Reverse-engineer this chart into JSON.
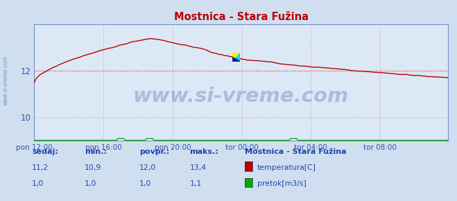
{
  "title": "Mostnica - Stara Fužina",
  "bg_color": "#d0dff0",
  "plot_bg_color": "#dce8f5",
  "grid_color": "#c0a0b0",
  "xlabel_color": "#3050b0",
  "ylim": [
    9.0,
    14.0
  ],
  "xlim": [
    0,
    287
  ],
  "yticks": [
    10,
    12
  ],
  "xtick_labels": [
    "pon 12:00",
    "pon 16:00",
    "pon 20:00",
    "tor 00:00",
    "tor 04:00",
    "tor 08:00"
  ],
  "xtick_positions": [
    0,
    48,
    96,
    144,
    192,
    240
  ],
  "temp_color": "#bb0000",
  "flow_color": "#00aa00",
  "avg_line_color": "#dd6060",
  "avg_value": 12.0,
  "watermark": "www.si-vreme.com",
  "watermark_color": "#1a3a9a",
  "watermark_alpha": 0.25,
  "footer_color": "#2244aa",
  "footer_label1": "sedaj:",
  "footer_label2": "min.:",
  "footer_label3": "povpr.:",
  "footer_label4": "maks.:",
  "footer_station": "Mostnica - Stara Fužina",
  "footer_temp_vals": [
    "11,2",
    "10,9",
    "12,0",
    "13,4"
  ],
  "footer_flow_vals": [
    "1,0",
    "1,0",
    "1,0",
    "1,1"
  ],
  "legend_temp": "temperatura[C]",
  "legend_flow": "pretok[m3/s]",
  "border_color": "#7090c0",
  "n_points": 288
}
